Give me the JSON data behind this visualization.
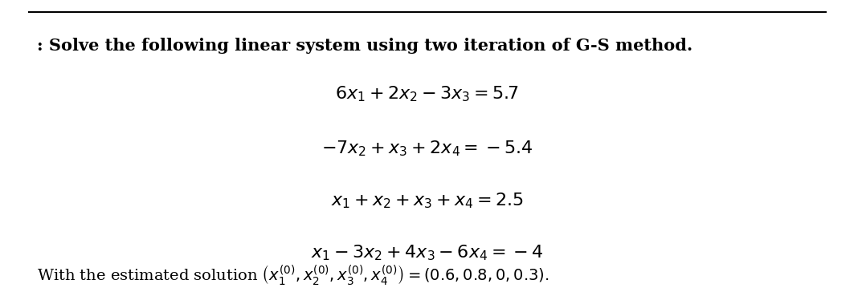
{
  "title": ": Solve the following linear system using two iteration of G-S method.",
  "eq1": "$6x_1 + 2x_2 - 3x_3 = 5.7$",
  "eq2": "$-7x_2 + x_3 + 2x_4 = -5.4$",
  "eq3": "$x_1 + x_2 + x_3 + x_4 = 2.5$",
  "eq4": "$x_1 - 3x_2 + 4x_3 - 6x_4 = -4$",
  "footer": "With the estimated solution $\\left(x_1^{(0)}, x_2^{(0)}, x_3^{(0)}, x_4^{(0)}\\right) = (0.6, 0.8, 0, 0.3).$",
  "bg_color": "#ffffff",
  "text_color": "#000000",
  "title_fontsize": 15,
  "eq_fontsize": 16,
  "footer_fontsize": 14
}
